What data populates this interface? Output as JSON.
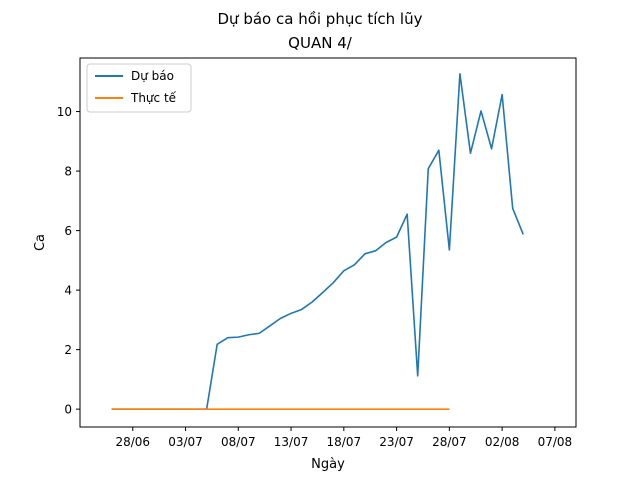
{
  "chart_data": {
    "type": "line",
    "title": "Dự báo ca hồi phục tích lũy",
    "subtitle": "QUAN 4/",
    "xlabel": "Ngày",
    "ylabel": "Ca",
    "x_ticks": [
      "28/06",
      "03/07",
      "08/07",
      "13/07",
      "18/07",
      "23/07",
      "28/07",
      "02/08",
      "07/08"
    ],
    "y_ticks": [
      "0",
      "2",
      "4",
      "6",
      "8",
      "10"
    ],
    "xlim": [
      "2020-06-23",
      "2020-08-09"
    ],
    "ylim": [
      -0.6,
      11.8
    ],
    "grid": false,
    "legend_position": "top-left",
    "series": [
      {
        "name": "Dự báo",
        "color": "#1f77b4",
        "x": [
          "2020-06-26",
          "2020-06-27",
          "2020-06-28",
          "2020-06-29",
          "2020-06-30",
          "2020-07-01",
          "2020-07-02",
          "2020-07-03",
          "2020-07-04",
          "2020-07-05",
          "2020-07-06",
          "2020-07-07",
          "2020-07-08",
          "2020-07-09",
          "2020-07-10",
          "2020-07-11",
          "2020-07-12",
          "2020-07-13",
          "2020-07-14",
          "2020-07-15",
          "2020-07-16",
          "2020-07-17",
          "2020-07-18",
          "2020-07-19",
          "2020-07-20",
          "2020-07-21",
          "2020-07-22",
          "2020-07-23",
          "2020-07-24",
          "2020-07-25",
          "2020-07-26",
          "2020-07-27",
          "2020-07-28",
          "2020-07-29",
          "2020-07-30",
          "2020-07-31",
          "2020-08-01",
          "2020-08-02",
          "2020-08-03",
          "2020-08-04"
        ],
        "values": [
          0,
          0,
          0,
          0,
          0,
          0,
          0,
          0,
          0,
          0,
          2.18,
          2.4,
          2.42,
          2.5,
          2.55,
          2.8,
          3.05,
          3.22,
          3.35,
          3.6,
          3.92,
          4.25,
          4.65,
          4.85,
          5.22,
          5.32,
          5.6,
          5.78,
          6.55,
          1.12,
          8.08,
          8.7,
          5.35,
          11.27,
          8.6,
          10.02,
          8.75,
          10.57,
          6.75,
          5.87
        ]
      },
      {
        "name": "Thực tế",
        "color": "#ff7f0e",
        "x": [
          "2020-06-26",
          "2020-06-27",
          "2020-06-28",
          "2020-06-29",
          "2020-06-30",
          "2020-07-01",
          "2020-07-02",
          "2020-07-03",
          "2020-07-04",
          "2020-07-05",
          "2020-07-06",
          "2020-07-07",
          "2020-07-08",
          "2020-07-09",
          "2020-07-10",
          "2020-07-11",
          "2020-07-12",
          "2020-07-13",
          "2020-07-14",
          "2020-07-15",
          "2020-07-16",
          "2020-07-17",
          "2020-07-18",
          "2020-07-19",
          "2020-07-20",
          "2020-07-21",
          "2020-07-22",
          "2020-07-23",
          "2020-07-24",
          "2020-07-25",
          "2020-07-26",
          "2020-07-27",
          "2020-07-28"
        ],
        "values": [
          0,
          0,
          0,
          0,
          0,
          0,
          0,
          0,
          0,
          0,
          0,
          0,
          0,
          0,
          0,
          0,
          0,
          0,
          0,
          0,
          0,
          0,
          0,
          0,
          0,
          0,
          0,
          0,
          0,
          0,
          0,
          0,
          0
        ]
      }
    ]
  }
}
